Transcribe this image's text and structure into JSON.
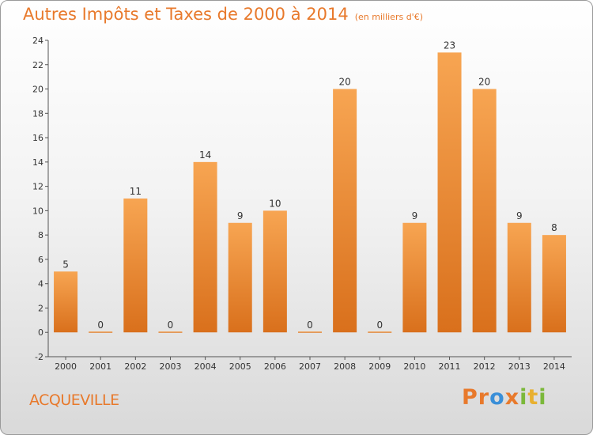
{
  "chart_data": {
    "type": "bar",
    "title": "Autres Impôts et Taxes de 2000 à 2014",
    "subtitle": "(en milliers d'€)",
    "categories": [
      "2000",
      "2001",
      "2002",
      "2003",
      "2004",
      "2005",
      "2006",
      "2007",
      "2008",
      "2009",
      "2010",
      "2011",
      "2012",
      "2013",
      "2014"
    ],
    "values": [
      5,
      0,
      11,
      0,
      14,
      9,
      10,
      0,
      20,
      0,
      9,
      23,
      20,
      9,
      8
    ],
    "ylim": [
      -2,
      24
    ],
    "yticks": [
      -2,
      0,
      2,
      4,
      6,
      8,
      10,
      12,
      14,
      16,
      18,
      20,
      22,
      24
    ],
    "grid": false,
    "bar_color_top": "#f7a552",
    "bar_color_bottom": "#d9701c"
  },
  "footer": {
    "commune": "ACQUEVILLE",
    "logo": [
      "P",
      "r",
      "o",
      "x",
      "i",
      "t",
      "i"
    ],
    "logo_colors": [
      "#e8792b",
      "#e8792b",
      "#3a8fd8",
      "#e8792b",
      "#7bb83a",
      "#e8b030",
      "#7bb83a"
    ]
  }
}
